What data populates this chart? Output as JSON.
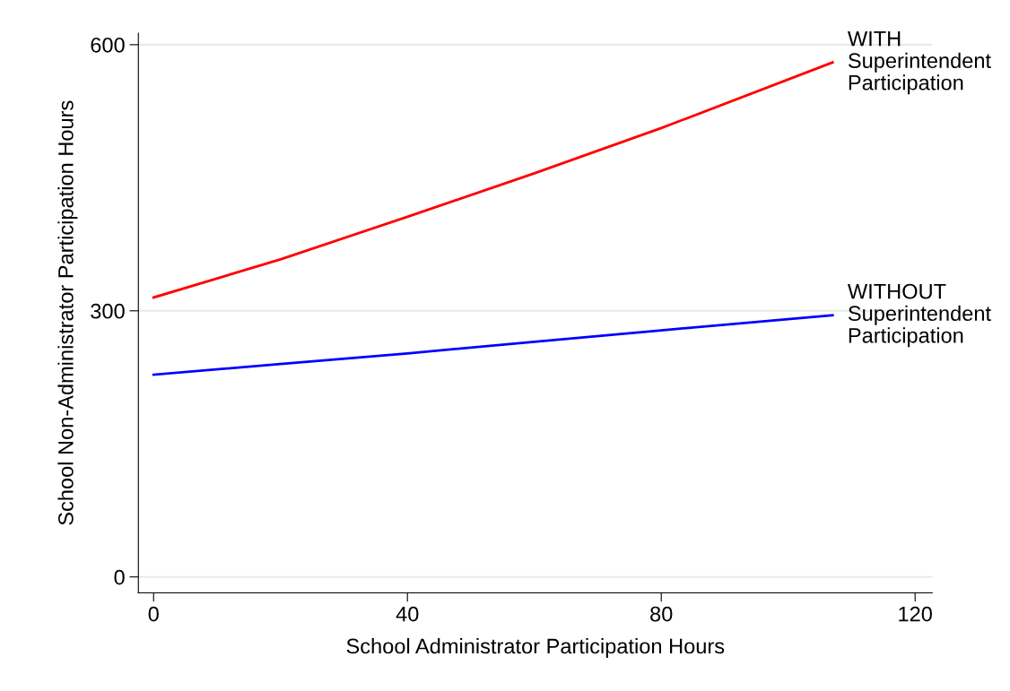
{
  "chart_data": {
    "type": "line",
    "xlabel": "School Administrator Participation Hours",
    "ylabel": "School Non-Administrator Participation Hours",
    "xlim": [
      -2.4,
      122.7
    ],
    "ylim": [
      -18,
      613
    ],
    "xticks": [
      0,
      40,
      80,
      120
    ],
    "yticks": [
      0,
      300,
      600
    ],
    "grid": "y",
    "legend": false,
    "marker": "none",
    "line_style": "solid",
    "series": [
      {
        "name": "WITH\nSuperintendent\nParticipation",
        "color": "#ff0000",
        "x": [
          0,
          20,
          40,
          60,
          80,
          107
        ],
        "values": [
          315,
          358,
          406,
          455,
          506,
          580
        ]
      },
      {
        "name": "WITHOUT\nSuperintendent\nParticipation",
        "color": "#0000ff",
        "x": [
          0,
          20,
          40,
          60,
          80,
          107
        ],
        "values": [
          228,
          240,
          252,
          265,
          278,
          295
        ]
      }
    ]
  }
}
